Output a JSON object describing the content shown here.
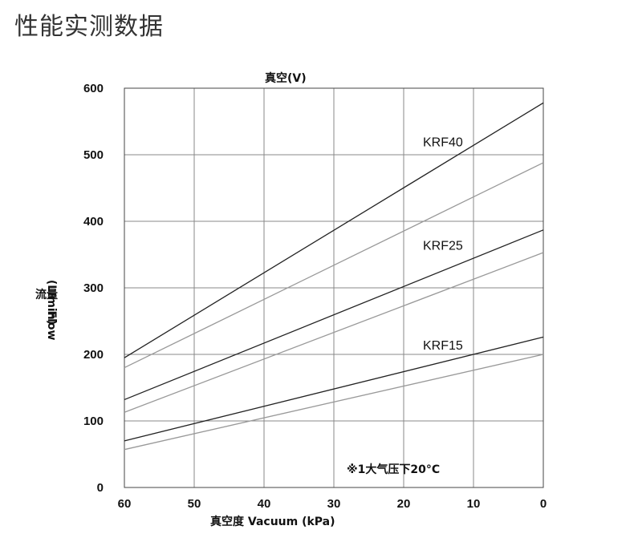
{
  "page": {
    "title": "性能实测数据"
  },
  "chart_data": {
    "type": "line",
    "top_axis_label": "真空(V)",
    "xlabel": "真空度 Vacuum (kPa)",
    "ylabel_lines": [
      "流量",
      "(L/min)",
      "Flow"
    ],
    "note": "※1大气压下20°C",
    "xlim": [
      60,
      0
    ],
    "ylim": [
      0,
      600
    ],
    "x_ticks": [
      60,
      50,
      40,
      30,
      20,
      10,
      0
    ],
    "y_ticks": [
      0,
      100,
      200,
      300,
      400,
      500,
      600
    ],
    "grid": true,
    "series": [
      {
        "name": "KRF40",
        "label": "KRF40",
        "color": "#222222",
        "x": [
          60,
          0
        ],
        "y": [
          195,
          578
        ]
      },
      {
        "name": "KRF40 (lower)",
        "label": "",
        "color": "#999999",
        "x": [
          60,
          0
        ],
        "y": [
          180,
          488
        ]
      },
      {
        "name": "KRF25",
        "label": "KRF25",
        "color": "#222222",
        "x": [
          60,
          0
        ],
        "y": [
          132,
          387
        ]
      },
      {
        "name": "KRF25 (lower)",
        "label": "",
        "color": "#999999",
        "x": [
          60,
          0
        ],
        "y": [
          113,
          353
        ]
      },
      {
        "name": "KRF15",
        "label": "KRF15",
        "color": "#222222",
        "x": [
          60,
          0
        ],
        "y": [
          70,
          226
        ]
      },
      {
        "name": "KRF15 (lower)",
        "label": "",
        "color": "#999999",
        "x": [
          60,
          0
        ],
        "y": [
          57,
          200
        ]
      }
    ],
    "series_labels": [
      {
        "text": "KRF40",
        "x": 10,
        "y": 510
      },
      {
        "text": "KRF25",
        "x": 10,
        "y": 355
      },
      {
        "text": "KRF15",
        "x": 10,
        "y": 205
      }
    ]
  }
}
